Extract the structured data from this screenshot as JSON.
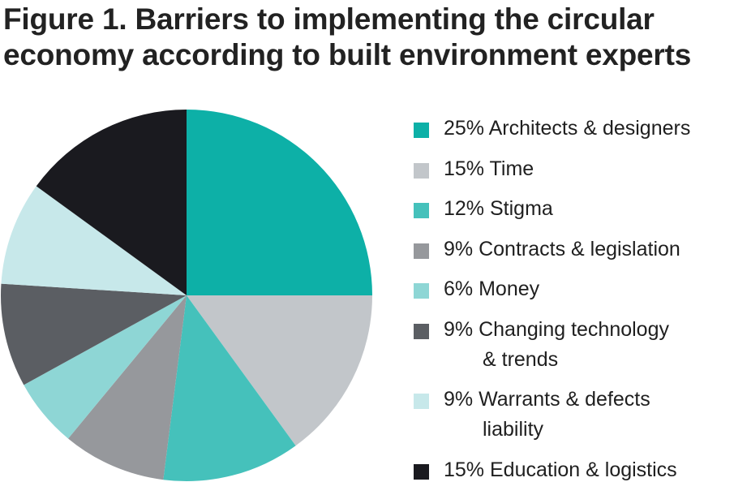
{
  "title_line1": "Figure 1. Barriers to implementing the circular",
  "title_line2": "economy according to built environment experts",
  "chart_data": {
    "type": "pie",
    "title": "Figure 1. Barriers to implementing the circular economy according to built environment experts",
    "legend_position": "right",
    "slices": [
      {
        "label": "Architects & designers",
        "value": 25,
        "legend_pct": "25%",
        "legend_text": "Architects & designers",
        "legend_text2": "",
        "color": "#0db0a7"
      },
      {
        "label": "Time",
        "value": 15,
        "legend_pct": "15%",
        "legend_text": "Time",
        "legend_text2": "",
        "color": "#c2c6ca"
      },
      {
        "label": "Stigma",
        "value": 12,
        "legend_pct": "12%",
        "legend_text": "Stigma",
        "legend_text2": "",
        "color": "#45c1bb"
      },
      {
        "label": "Contracts & legislation",
        "value": 9,
        "legend_pct": "9%",
        "legend_text": "Contracts & legislation",
        "legend_text2": "",
        "color": "#96989c"
      },
      {
        "label": "Money",
        "value": 6,
        "legend_pct": "6%",
        "legend_text": "Money",
        "legend_text2": "",
        "color": "#8ed6d5"
      },
      {
        "label": "Changing technology & trends",
        "value": 9,
        "legend_pct": "9%",
        "legend_text": "Changing technology",
        "legend_text2": "& trends",
        "color": "#5b5e63"
      },
      {
        "label": "Warrants & defects liability",
        "value": 9,
        "legend_pct": "9%",
        "legend_text": "Warrants & defects",
        "legend_text2": "liability",
        "color": "#c7e8ea"
      },
      {
        "label": "Education & logistics",
        "value": 15,
        "legend_pct": "15%",
        "legend_text": "Education & logistics",
        "legend_text2": "",
        "color": "#1a1a1f"
      }
    ]
  }
}
